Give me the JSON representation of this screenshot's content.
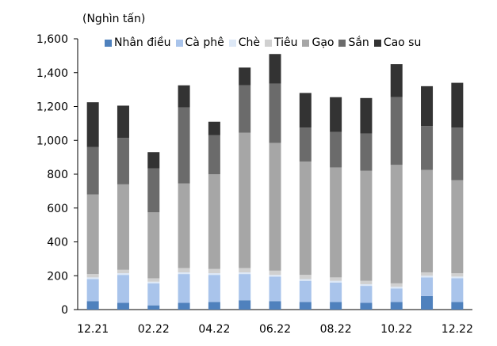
{
  "chart_data": {
    "type": "bar",
    "stacked": true,
    "unit_label": "(Nghìn tấn)",
    "categories": [
      "12.21",
      "01.22",
      "02.22",
      "03.22",
      "04.22",
      "05.22",
      "06.22",
      "07.22",
      "08.22",
      "09.22",
      "10.22",
      "11.22",
      "12.22"
    ],
    "x_tick_labels": [
      "12.21",
      "",
      "02.22",
      "",
      "04.22",
      "",
      "06.22",
      "",
      "08.22",
      "",
      "10.22",
      "",
      "12.22"
    ],
    "y_ticks": [
      0,
      200,
      400,
      600,
      800,
      1000,
      1200,
      1400,
      1600
    ],
    "y_tick_labels": [
      "0",
      "200",
      "400",
      "600",
      "800",
      "1,000",
      "1,200",
      "1,400",
      "1,600"
    ],
    "ylim": [
      0,
      1600
    ],
    "legend_position": "top",
    "grid": false,
    "series": [
      {
        "name": "Nhân điều",
        "color": "#4f81bd",
        "values": [
          50,
          40,
          25,
          40,
          45,
          55,
          50,
          45,
          45,
          40,
          45,
          80,
          45
        ]
      },
      {
        "name": "Cà phê",
        "color": "#a9c4eb",
        "values": [
          130,
          165,
          130,
          170,
          160,
          155,
          145,
          125,
          115,
          100,
          80,
          110,
          140
        ]
      },
      {
        "name": "Chè",
        "color": "#dde8f6",
        "values": [
          10,
          10,
          10,
          10,
          10,
          10,
          10,
          10,
          10,
          10,
          10,
          10,
          10
        ]
      },
      {
        "name": "Tiêu",
        "color": "#d0d0d0",
        "values": [
          20,
          20,
          20,
          25,
          25,
          25,
          25,
          25,
          20,
          20,
          20,
          20,
          20
        ]
      },
      {
        "name": "Gạo",
        "color": "#a6a6a6",
        "values": [
          470,
          505,
          390,
          500,
          560,
          800,
          755,
          670,
          650,
          650,
          700,
          605,
          550
        ]
      },
      {
        "name": "Sắn",
        "color": "#6b6b6b",
        "values": [
          280,
          275,
          260,
          450,
          230,
          280,
          350,
          200,
          210,
          220,
          400,
          260,
          310
        ]
      },
      {
        "name": "Cao su",
        "color": "#333333",
        "values": [
          265,
          190,
          95,
          130,
          80,
          105,
          175,
          205,
          205,
          210,
          195,
          235,
          265
        ]
      }
    ]
  }
}
